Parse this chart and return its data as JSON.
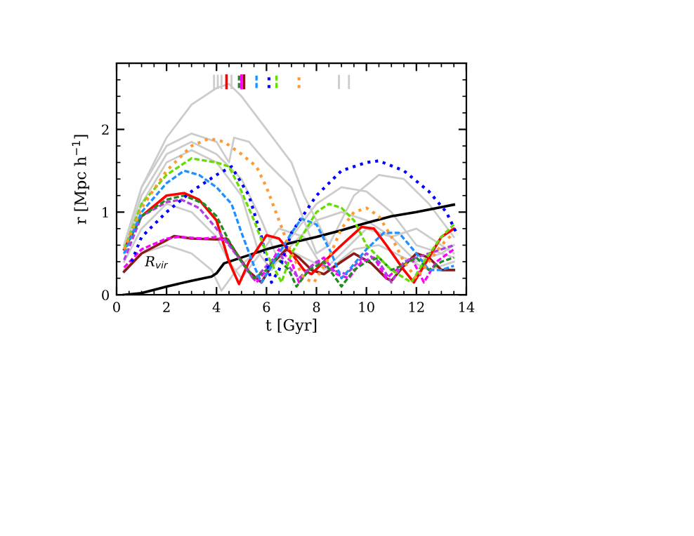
{
  "chart_data": {
    "type": "line",
    "xlabel": "t [Gyr]",
    "ylabel": "r [Mpc h$^{−1}$]",
    "xlim": [
      0,
      14
    ],
    "xticks": [
      0,
      2,
      4,
      6,
      8,
      10,
      12,
      14
    ],
    "ylim": [
      0,
      2.8
    ],
    "yticks": [
      0,
      1,
      2
    ],
    "grid": false,
    "annotations": [
      {
        "text": "R$_{vir}$",
        "x": 3,
        "y": 0.17
      }
    ],
    "series": [
      {
        "color": "#cccccc",
        "line_style": "solid",
        "x": [
          0.3,
          1,
          2,
          3,
          4,
          4.5,
          5,
          5.5,
          6,
          7,
          7.5,
          8,
          8.5
        ],
        "values": [
          0.6,
          1.3,
          1.9,
          2.3,
          2.5,
          2.55,
          2.4,
          2.2,
          2.0,
          1.6,
          1.2,
          0.9,
          0.6
        ]
      },
      {
        "color": "#cccccc",
        "line_style": "solid",
        "x": [
          0.3,
          1,
          2,
          3,
          4,
          4.5,
          4.7,
          5.3,
          6,
          7,
          7.5,
          8,
          8.5,
          9.5,
          10.5,
          11.5,
          12.5,
          13.5
        ],
        "values": [
          0.6,
          1.3,
          1.8,
          1.95,
          1.85,
          1.6,
          1.9,
          1.85,
          1.6,
          1.3,
          0.9,
          0.5,
          0.6,
          1.2,
          1.45,
          1.4,
          1.1,
          0.7
        ]
      },
      {
        "color": "#cccccc",
        "line_style": "solid",
        "x": [
          0.3,
          1,
          2,
          3,
          4,
          5,
          5.7,
          6.2,
          7,
          8,
          9,
          10,
          11,
          12,
          13,
          13.5
        ],
        "values": [
          0.5,
          1.1,
          1.6,
          1.75,
          1.6,
          1.2,
          0.5,
          0.3,
          0.7,
          1.1,
          1.3,
          1.25,
          1.0,
          0.6,
          0.5,
          0.6
        ]
      },
      {
        "color": "#cccccc",
        "line_style": "solid",
        "x": [
          0.3,
          1,
          2,
          3,
          4,
          4.5,
          5,
          5.5,
          6.5,
          7.5,
          8.3,
          9,
          10,
          11,
          12,
          13,
          13.5
        ],
        "values": [
          0.4,
          0.8,
          1.1,
          1.0,
          0.7,
          0.4,
          0.2,
          0.4,
          0.8,
          0.7,
          0.3,
          0.5,
          0.8,
          0.7,
          0.4,
          0.5,
          0.45
        ]
      },
      {
        "color": "#cccccc",
        "line_style": "solid",
        "x": [
          0.3,
          1,
          2,
          3,
          3.8,
          4.2,
          4.8,
          5.5,
          6.5,
          7.5,
          8.5,
          9.5,
          10.5,
          11.5,
          12.5,
          13.5
        ],
        "values": [
          0.3,
          0.5,
          0.6,
          0.5,
          0.3,
          0.05,
          0.3,
          0.5,
          0.6,
          0.45,
          0.3,
          0.55,
          0.6,
          0.45,
          0.3,
          0.4
        ]
      },
      {
        "color": "#cccccc",
        "line_style": "solid",
        "x": [
          0.3,
          1,
          2,
          3,
          4,
          5,
          5.8,
          6.5,
          7,
          8,
          9,
          10,
          11,
          12,
          13,
          13.5
        ],
        "values": [
          0.55,
          1.2,
          1.7,
          1.85,
          1.7,
          1.4,
          0.9,
          0.4,
          0.6,
          0.9,
          1.0,
          0.9,
          0.7,
          0.8,
          0.6,
          0.5
        ]
      },
      {
        "color": "#000000",
        "line_style": "solid",
        "x": [
          0.3,
          1,
          2,
          3,
          3.8,
          4,
          4.3,
          5,
          6,
          7,
          8,
          9,
          10,
          11,
          12,
          13,
          13.5
        ],
        "values": [
          0.0,
          0.02,
          0.1,
          0.17,
          0.22,
          0.26,
          0.38,
          0.45,
          0.55,
          0.63,
          0.7,
          0.78,
          0.87,
          0.95,
          1.0,
          1.06,
          1.09
        ]
      },
      {
        "color": "#ff9933",
        "line_style": "dotted",
        "x": [
          0.3,
          1,
          2,
          3,
          3.7,
          4.3,
          5,
          5.6,
          6,
          6.5,
          7,
          7.5,
          7.9,
          8.5,
          9,
          9.5,
          10,
          10.5,
          11,
          11.5,
          12,
          12.5,
          13,
          13.5
        ],
        "values": [
          0.55,
          1.05,
          1.5,
          1.8,
          1.89,
          1.85,
          1.7,
          1.55,
          1.3,
          0.9,
          0.5,
          0.2,
          0.15,
          0.45,
          0.8,
          1.0,
          1.05,
          0.95,
          0.7,
          0.4,
          0.2,
          0.4,
          0.6,
          0.75
        ]
      },
      {
        "color": "#66dd00",
        "line_style": "dashed",
        "x": [
          0.3,
          1,
          2,
          3,
          4,
          4.5,
          5,
          5.5,
          6,
          6.6,
          7,
          7.5,
          8,
          8.5,
          9,
          9.5,
          10,
          11,
          11.8,
          12.3,
          13,
          13.5
        ],
        "values": [
          0.55,
          1.1,
          1.45,
          1.65,
          1.6,
          1.55,
          1.25,
          0.9,
          0.5,
          0.15,
          0.5,
          0.75,
          1.0,
          1.1,
          1.05,
          0.9,
          0.6,
          0.3,
          0.15,
          0.4,
          0.7,
          0.85
        ]
      },
      {
        "color": "#1e90ff",
        "line_style": "dashed",
        "x": [
          0.3,
          1,
          2,
          2.7,
          3.3,
          4,
          4.6,
          5,
          5.5,
          5.8,
          6.3,
          7,
          7.4,
          8,
          8.6,
          9,
          9.3,
          10,
          10.7,
          11.3,
          12,
          12.5,
          13,
          13.5
        ],
        "values": [
          0.5,
          1.0,
          1.35,
          1.5,
          1.45,
          1.3,
          1.1,
          0.75,
          0.35,
          0.15,
          0.4,
          0.75,
          0.92,
          0.85,
          0.5,
          0.2,
          0.3,
          0.55,
          0.75,
          0.75,
          0.5,
          0.3,
          0.3,
          0.35
        ]
      },
      {
        "color": "#0000ff",
        "line_style": "dotted",
        "x": [
          0.6,
          1,
          2,
          3,
          4,
          4.6,
          5.3,
          5.8,
          6.2,
          6.5,
          7,
          8,
          9,
          10,
          10.5,
          11.5,
          12.5,
          13.2,
          13.6
        ],
        "values": [
          0.4,
          0.7,
          1.0,
          1.25,
          1.45,
          1.55,
          1.2,
          0.7,
          0.15,
          0.3,
          0.75,
          1.2,
          1.5,
          1.6,
          1.62,
          1.5,
          1.25,
          1.0,
          0.75
        ]
      },
      {
        "color": "#228b22",
        "line_style": "dashed",
        "x": [
          0.3,
          1,
          2,
          2.7,
          3.5,
          4,
          4.5,
          5,
          5.5,
          6,
          6.4,
          6.9,
          7.2,
          7.7,
          8.3,
          9,
          9.5,
          10,
          10.5,
          11,
          11.4,
          12,
          12.5,
          13,
          13.5
        ],
        "values": [
          0.55,
          0.95,
          1.15,
          1.2,
          1.1,
          0.95,
          0.65,
          0.4,
          0.2,
          0.3,
          0.45,
          0.3,
          0.1,
          0.3,
          0.4,
          0.1,
          0.3,
          0.4,
          0.45,
          0.3,
          0.35,
          0.45,
          0.3,
          0.4,
          0.45
        ]
      },
      {
        "color": "#b040e0",
        "line_style": "dashed",
        "x": [
          0.3,
          1,
          2,
          2.6,
          3.3,
          4,
          4.5,
          5,
          5.5,
          6,
          6.5,
          7,
          7.3,
          8,
          8.6,
          9.2,
          10,
          10.5,
          11,
          11.5,
          12.5,
          13.5
        ],
        "values": [
          0.42,
          0.95,
          1.12,
          1.15,
          1.05,
          0.8,
          0.6,
          0.4,
          0.18,
          0.35,
          0.5,
          0.3,
          0.2,
          0.4,
          0.3,
          0.25,
          0.5,
          0.4,
          0.15,
          0.4,
          0.5,
          0.6
        ]
      },
      {
        "color": "#ff00ff",
        "line_style": "dashed",
        "x": [
          0.3,
          1,
          2,
          2.5,
          3.5,
          4,
          4.5,
          5,
          5.6,
          6,
          6.5,
          7,
          7.3,
          7.8,
          8.3,
          8.8,
          9.3,
          9.8,
          10.3,
          10.8,
          11.2,
          11.8,
          12.3,
          12.8,
          13.5
        ],
        "values": [
          0.33,
          0.55,
          0.68,
          0.7,
          0.68,
          0.7,
          0.62,
          0.4,
          0.15,
          0.3,
          0.55,
          0.4,
          0.15,
          0.35,
          0.45,
          0.25,
          0.2,
          0.4,
          0.45,
          0.2,
          0.3,
          0.45,
          0.15,
          0.4,
          0.55
        ]
      },
      {
        "color": "#8b1a1a",
        "line_style": "solid",
        "x": [
          0.3,
          1,
          2,
          2.3,
          3,
          4,
          4.4,
          4.8,
          5.3,
          5.8,
          6.3,
          6.8,
          7.3,
          7.8,
          8.3,
          9,
          9.5,
          10.2,
          10.8,
          11,
          11.5,
          12,
          12.5,
          13,
          13.5
        ],
        "values": [
          0.28,
          0.5,
          0.66,
          0.71,
          0.68,
          0.67,
          0.68,
          0.5,
          0.28,
          0.15,
          0.4,
          0.55,
          0.45,
          0.3,
          0.25,
          0.4,
          0.5,
          0.38,
          0.2,
          0.17,
          0.35,
          0.5,
          0.45,
          0.3,
          0.3
        ]
      },
      {
        "color": "#ff0000",
        "line_style": "solid",
        "x": [
          0.3,
          1,
          2,
          2.7,
          3.3,
          4,
          4.5,
          4.9,
          5.3,
          6,
          6.5,
          7,
          7.5,
          7.8,
          8.3,
          9,
          9.8,
          10.3,
          10.8,
          11.5,
          11.9,
          12.3,
          13,
          13.5
        ],
        "values": [
          0.55,
          0.95,
          1.2,
          1.23,
          1.15,
          0.9,
          0.4,
          0.13,
          0.4,
          0.72,
          0.68,
          0.5,
          0.3,
          0.25,
          0.4,
          0.6,
          0.82,
          0.8,
          0.6,
          0.3,
          0.15,
          0.35,
          0.7,
          0.8
        ]
      },
      {
        "color": "#cccccc",
        "line_style": "solid",
        "x": [
          3.9,
          3.9
        ],
        "values": [
          2.5,
          2.65
        ]
      },
      {
        "color": "#cccccc",
        "line_style": "solid",
        "x": [
          4.05,
          4.05
        ],
        "values": [
          2.5,
          2.65
        ]
      },
      {
        "color": "#cccccc",
        "line_style": "solid",
        "x": [
          4.2,
          4.2
        ],
        "values": [
          2.5,
          2.65
        ]
      },
      {
        "color": "#ff0000",
        "line_style": "solid",
        "x": [
          4.4,
          4.4
        ],
        "values": [
          2.5,
          2.65
        ]
      },
      {
        "color": "#cccccc",
        "line_style": "solid",
        "x": [
          4.6,
          4.6
        ],
        "values": [
          2.5,
          2.65
        ]
      },
      {
        "color": "#228b22",
        "line_style": "dashed",
        "x": [
          4.9,
          4.9
        ],
        "values": [
          2.5,
          2.65
        ]
      },
      {
        "color": "#ff00ff",
        "line_style": "solid",
        "x": [
          5.0,
          5.0
        ],
        "values": [
          2.5,
          2.65
        ]
      },
      {
        "color": "#8b1a1a",
        "line_style": "solid",
        "x": [
          5.1,
          5.1
        ],
        "values": [
          2.5,
          2.65
        ]
      },
      {
        "color": "#1e90ff",
        "line_style": "dashed",
        "x": [
          5.6,
          5.6
        ],
        "values": [
          2.5,
          2.65
        ]
      },
      {
        "color": "#0000ff",
        "line_style": "dotted",
        "x": [
          6.1,
          6.1
        ],
        "values": [
          2.5,
          2.65
        ]
      },
      {
        "color": "#66dd00",
        "line_style": "dashed",
        "x": [
          6.4,
          6.4
        ],
        "values": [
          2.5,
          2.65
        ]
      },
      {
        "color": "#ff9933",
        "line_style": "dotted",
        "x": [
          7.3,
          7.3
        ],
        "values": [
          2.5,
          2.65
        ]
      },
      {
        "color": "#cccccc",
        "line_style": "solid",
        "x": [
          8.9,
          8.9
        ],
        "values": [
          2.5,
          2.65
        ]
      },
      {
        "color": "#cccccc",
        "line_style": "solid",
        "x": [
          9.3,
          9.3
        ],
        "values": [
          2.5,
          2.65
        ]
      }
    ]
  }
}
